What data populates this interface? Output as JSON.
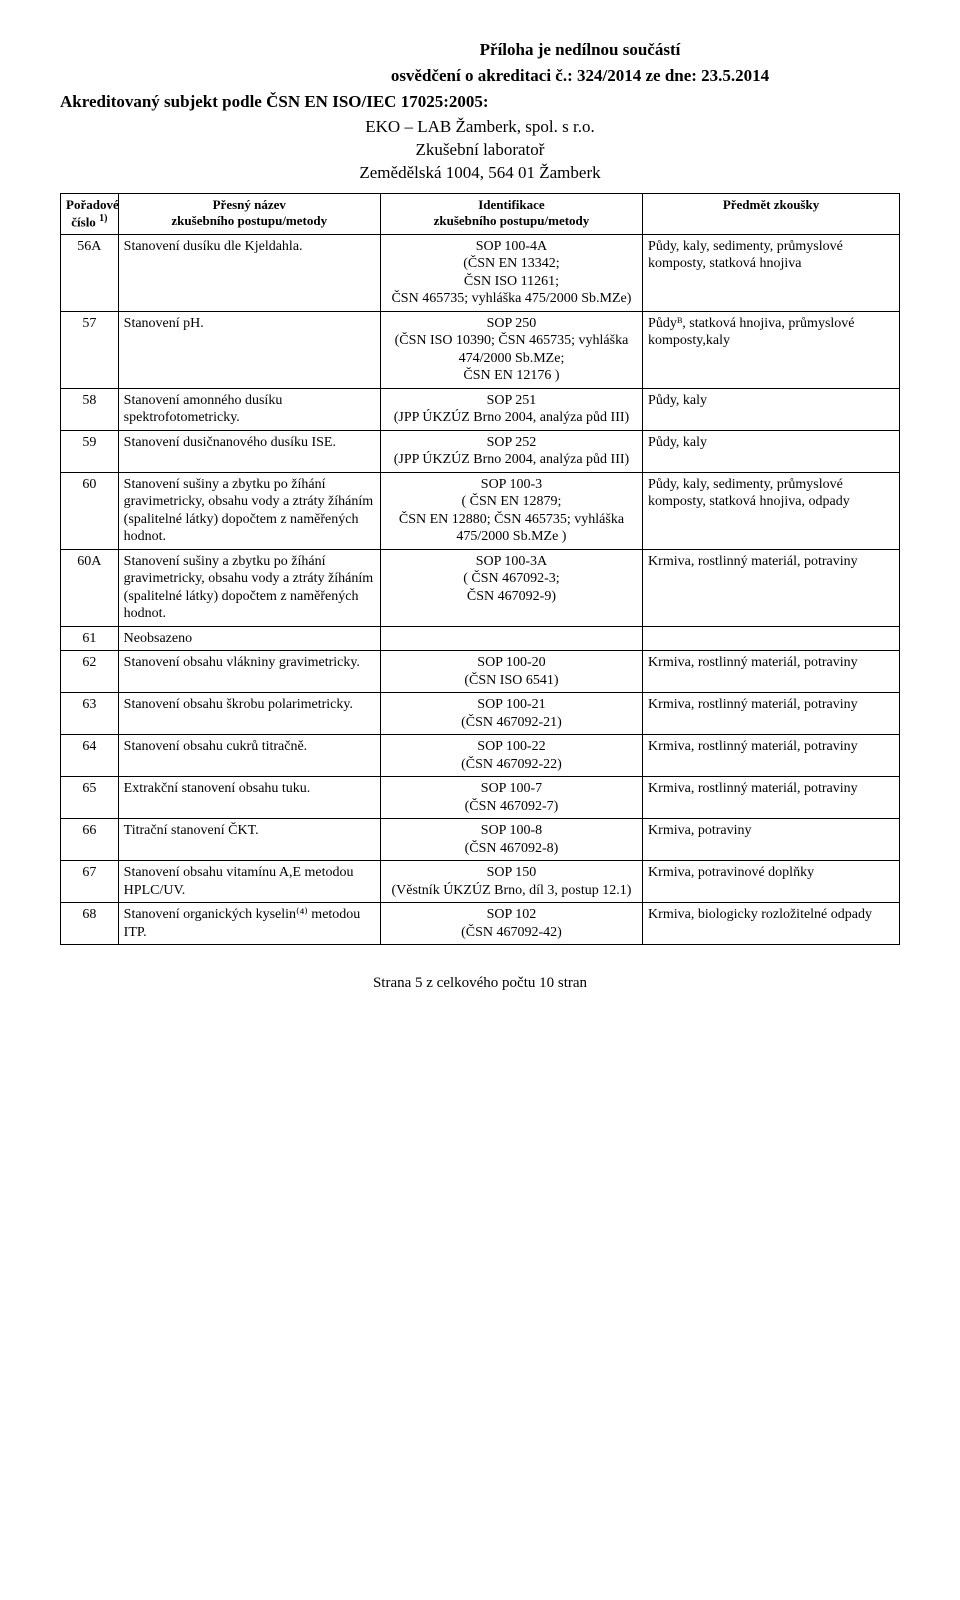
{
  "header": {
    "line1": "Příloha je nedílnou součástí",
    "line2": "osvědčení o akreditaci č.: 324/2014 ze dne: 23.5.2014"
  },
  "subject": "Akreditovaný subjekt podle ČSN EN ISO/IEC 17025:2005:",
  "lab": {
    "name": "EKO – LAB Žamberk, spol. s r.o.",
    "desc": "Zkušební laboratoř",
    "addr": "Zemědělská 1004, 564 01 Žamberk"
  },
  "thead": {
    "c0a": "Pořadové",
    "c0b": "číslo",
    "c0sup": "1)",
    "c1a": "Přesný název",
    "c1b": "zkušebního postupu/metody",
    "c2a": "Identifikace",
    "c2b": "zkušebního postupu/metody",
    "c3": "Předmět zkoušky"
  },
  "rows": [
    {
      "n": "56A",
      "name": "Stanovení dusíku dle Kjeldahla.",
      "id": "SOP 100-4A\n(ČSN EN 13342;\nČSN ISO 11261;\nČSN 465735; vyhláška 475/2000 Sb.MZe)",
      "subj": "Půdy, kaly, sedimenty, průmyslové komposty, statková hnojiva"
    },
    {
      "n": "57",
      "name": "Stanovení pH.",
      "id": "SOP 250\n(ČSN ISO 10390; ČSN 465735; vyhláška 474/2000 Sb.MZe;\nČSN EN 12176 )",
      "subj": "Půdyᴮ, statková hnojiva, průmyslové komposty,kaly"
    },
    {
      "n": "58",
      "name": "Stanovení amonného dusíku spektrofotometricky.",
      "id": "SOP 251\n(JPP ÚKZÚZ Brno 2004, analýza půd III)",
      "subj": "Půdy, kaly"
    },
    {
      "n": "59",
      "name": "Stanovení dusičnanového dusíku ISE.",
      "id": "SOP 252\n(JPP ÚKZÚZ Brno 2004, analýza půd III)",
      "subj": "Půdy, kaly"
    },
    {
      "n": "60",
      "name": "Stanovení sušiny a zbytku po žíhání gravimetricky, obsahu vody a ztráty žíháním (spalitelné látky) dopočtem z naměřených hodnot.",
      "id": "SOP 100-3\n( ČSN EN 12879;\nČSN EN 12880; ČSN 465735; vyhláška 475/2000 Sb.MZe )",
      "subj": "Půdy, kaly, sedimenty, průmyslové komposty, statková hnojiva, odpady"
    },
    {
      "n": "60A",
      "name": "Stanovení sušiny a zbytku po žíhání gravimetricky, obsahu vody a ztráty žíháním (spalitelné látky) dopočtem z naměřených hodnot.",
      "id": "SOP 100-3A\n( ČSN 467092-3;\nČSN 467092-9)",
      "subj": "Krmiva, rostlinný materiál, potraviny"
    },
    {
      "n": "61",
      "name": "Neobsazeno",
      "id": "",
      "subj": ""
    },
    {
      "n": "62",
      "name": "Stanovení obsahu vlákniny gravimetricky.",
      "id": "SOP 100-20\n(ČSN ISO 6541)",
      "subj": "Krmiva, rostlinný materiál, potraviny"
    },
    {
      "n": "63",
      "name": "Stanovení obsahu škrobu polarimetricky.",
      "id": "SOP 100-21\n(ČSN 467092-21)",
      "subj": "Krmiva, rostlinný materiál, potraviny"
    },
    {
      "n": "64",
      "name": "Stanovení obsahu cukrů titračně.",
      "id": "SOP 100-22\n(ČSN 467092-22)",
      "subj": "Krmiva, rostlinný materiál, potraviny"
    },
    {
      "n": "65",
      "name": "Extrakční stanovení obsahu tuku.",
      "id": "SOP 100-7\n(ČSN 467092-7)",
      "subj": "Krmiva, rostlinný materiál, potraviny"
    },
    {
      "n": "66",
      "name": "Titrační stanovení ČKT.",
      "id": "SOP 100-8\n(ČSN 467092-8)",
      "subj": "Krmiva, potraviny"
    },
    {
      "n": "67",
      "name": "Stanovení obsahu vitamínu A,E metodou HPLC/UV.",
      "id": "SOP 150\n(Věstník ÚKZÚZ Brno, díl 3, postup 12.1)",
      "subj": "Krmiva, potravinové doplňky"
    },
    {
      "n": "68",
      "name": "Stanovení organických kyselin⁽⁴⁾ metodou ITP.",
      "id": "SOP 102\n(ČSN 467092-42)",
      "subj": "Krmiva, biologicky rozložitelné odpady"
    }
  ],
  "footer": "Strana 5 z celkového počtu 10 stran"
}
